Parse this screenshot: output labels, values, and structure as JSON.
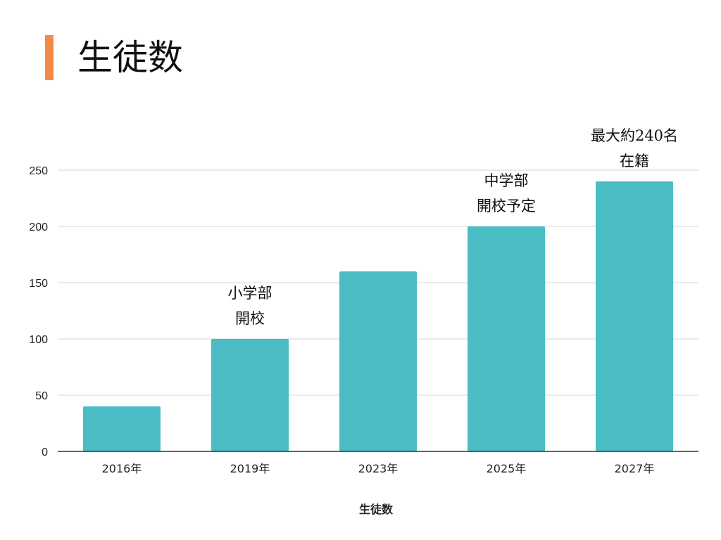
{
  "page": {
    "title": "生徒数",
    "accent_color": "#f4894a"
  },
  "chart_data": {
    "type": "bar",
    "categories": [
      "2016年",
      "2019年",
      "2023年",
      "2025年",
      "2027年"
    ],
    "values": [
      40,
      100,
      160,
      200,
      240
    ],
    "xlabel": "生徒数",
    "ylabel": "",
    "ylim": [
      0,
      250
    ],
    "yticks": [
      0,
      50,
      100,
      150,
      200,
      250
    ],
    "grid": true,
    "bar_color": "#4abcc5",
    "annotations": [
      {
        "category": "2019年",
        "lines": [
          "小学部",
          "開校"
        ]
      },
      {
        "category": "2025年",
        "lines": [
          "中学部",
          "開校予定"
        ]
      },
      {
        "category": "2027年",
        "lines": [
          "最大約240名",
          "在籍"
        ]
      }
    ]
  }
}
